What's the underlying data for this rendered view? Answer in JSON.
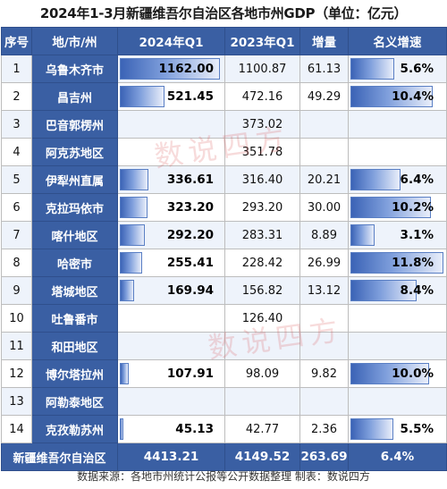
{
  "title": "2024年1-3月新疆维吾尔自治区各地市州GDP（单位：亿元）",
  "headers": {
    "idx": "序号",
    "region": "地/市/州",
    "q1_2024": "2024年Q1",
    "q1_2023": "2023年Q1",
    "increase": "增量",
    "growth": "名义增速"
  },
  "rows": [
    {
      "idx": "1",
      "region": "乌鲁木齐市",
      "q1_2024": "1162.00",
      "q1_2024_value": 1162.0,
      "q1_2023": "1100.87",
      "increase": "61.13",
      "growth": "5.6%",
      "growth_value": 5.6
    },
    {
      "idx": "2",
      "region": "昌吉州",
      "q1_2024": "521.45",
      "q1_2024_value": 521.45,
      "q1_2023": "472.16",
      "increase": "49.29",
      "growth": "10.4%",
      "growth_value": 10.4
    },
    {
      "idx": "3",
      "region": "巴音郭楞州",
      "q1_2024": "",
      "q1_2024_value": 0,
      "q1_2023": "373.02",
      "increase": "",
      "growth": "",
      "growth_value": 0
    },
    {
      "idx": "4",
      "region": "阿克苏地区",
      "q1_2024": "",
      "q1_2024_value": 0,
      "q1_2023": "351.78",
      "increase": "",
      "growth": "",
      "growth_value": 0
    },
    {
      "idx": "5",
      "region": "伊犁州直属",
      "q1_2024": "336.61",
      "q1_2024_value": 336.61,
      "q1_2023": "316.40",
      "increase": "20.21",
      "growth": "6.4%",
      "growth_value": 6.4
    },
    {
      "idx": "6",
      "region": "克拉玛依市",
      "q1_2024": "323.20",
      "q1_2024_value": 323.2,
      "q1_2023": "293.20",
      "increase": "30.00",
      "growth": "10.2%",
      "growth_value": 10.2
    },
    {
      "idx": "7",
      "region": "喀什地区",
      "q1_2024": "292.20",
      "q1_2024_value": 292.2,
      "q1_2023": "283.31",
      "increase": "8.89",
      "growth": "3.1%",
      "growth_value": 3.1
    },
    {
      "idx": "8",
      "region": "哈密市",
      "q1_2024": "255.41",
      "q1_2024_value": 255.41,
      "q1_2023": "228.42",
      "increase": "26.99",
      "growth": "11.8%",
      "growth_value": 11.8
    },
    {
      "idx": "9",
      "region": "塔城地区",
      "q1_2024": "169.94",
      "q1_2024_value": 169.94,
      "q1_2023": "156.82",
      "increase": "13.12",
      "growth": "8.4%",
      "growth_value": 8.4
    },
    {
      "idx": "10",
      "region": "吐鲁番市",
      "q1_2024": "",
      "q1_2024_value": 0,
      "q1_2023": "126.40",
      "increase": "",
      "growth": "",
      "growth_value": 0
    },
    {
      "idx": "11",
      "region": "和田地区",
      "q1_2024": "",
      "q1_2024_value": 0,
      "q1_2023": "",
      "increase": "",
      "growth": "",
      "growth_value": 0
    },
    {
      "idx": "12",
      "region": "博尔塔拉州",
      "q1_2024": "107.91",
      "q1_2024_value": 107.91,
      "q1_2023": "98.09",
      "increase": "9.82",
      "growth": "10.0%",
      "growth_value": 10.0
    },
    {
      "idx": "13",
      "region": "阿勒泰地区",
      "q1_2024": "",
      "q1_2024_value": 0,
      "q1_2023": "",
      "increase": "",
      "growth": "",
      "growth_value": 0
    },
    {
      "idx": "14",
      "region": "克孜勒苏州",
      "q1_2024": "45.13",
      "q1_2024_value": 45.13,
      "q1_2023": "42.77",
      "increase": "2.36",
      "growth": "5.5%",
      "growth_value": 5.5
    }
  ],
  "total": {
    "region": "新疆维吾尔自治区",
    "q1_2024": "4413.21",
    "q1_2023": "4149.52",
    "increase": "263.69",
    "growth": "6.4%"
  },
  "source": "数据来源：各地市州统计公报等公开数据整理   制表：数说四方",
  "watermark": "数说四方",
  "colors": {
    "header_bg": "#3a5fa3",
    "bar_dark": "#3b63b6",
    "bar_light": "#e9eefa",
    "row_alt": "#eef3fb",
    "watermark": "#dc5a5a"
  }
}
